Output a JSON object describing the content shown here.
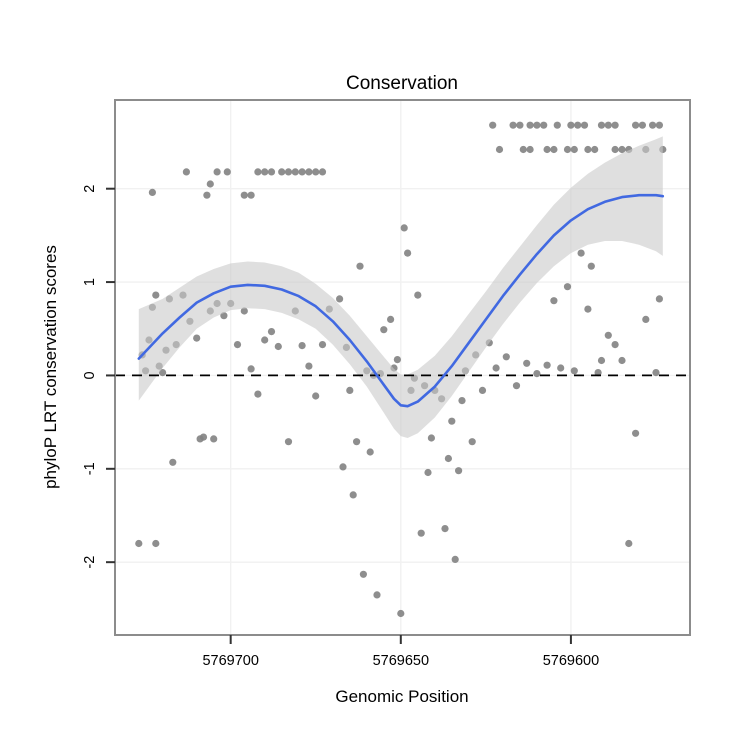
{
  "chart_data": {
    "type": "scatter",
    "title": "Conservation",
    "xlabel": "Genomic Position",
    "ylabel": "phyloP LRT conservation scores",
    "x_reversed": true,
    "xlim": [
      5769734,
      5769565
    ],
    "ylim": [
      -2.78,
      2.95
    ],
    "grid": "on",
    "legend": "none",
    "x_ticks": [
      {
        "value": 5769700,
        "label": "5769700"
      },
      {
        "value": 5769650,
        "label": "5769650"
      },
      {
        "value": 5769600,
        "label": "5769600"
      }
    ],
    "y_ticks": [
      {
        "value": -2,
        "label": "-2"
      },
      {
        "value": -1,
        "label": "-1"
      },
      {
        "value": 0,
        "label": "0"
      },
      {
        "value": 1,
        "label": "1"
      },
      {
        "value": 2,
        "label": "2"
      }
    ],
    "zero_line": {
      "y": 0,
      "style": "dashed",
      "color": "#000000"
    },
    "colors": {
      "point": "#828282",
      "smooth_line": "#4169E1",
      "ci_band": "#c9c9c9",
      "grid": "#f1f1f1",
      "panel_border": "#8c8c8c",
      "background": "#ffffff"
    },
    "points": [
      [
        5769723,
        1.96
      ],
      [
        5769713,
        2.18
      ],
      [
        5769707,
        1.93
      ],
      [
        5769706,
        2.05
      ],
      [
        5769704,
        2.18
      ],
      [
        5769701,
        2.18
      ],
      [
        5769696,
        1.93
      ],
      [
        5769694,
        1.93
      ],
      [
        5769692,
        2.18
      ],
      [
        5769690,
        2.18
      ],
      [
        5769688,
        2.18
      ],
      [
        5769685,
        2.18
      ],
      [
        5769683,
        2.18
      ],
      [
        5769681,
        2.18
      ],
      [
        5769679,
        2.18
      ],
      [
        5769677,
        2.18
      ],
      [
        5769675,
        2.18
      ],
      [
        5769673,
        2.18
      ],
      [
        5769623,
        2.68
      ],
      [
        5769617,
        2.68
      ],
      [
        5769615,
        2.68
      ],
      [
        5769612,
        2.68
      ],
      [
        5769610,
        2.68
      ],
      [
        5769608,
        2.68
      ],
      [
        5769604,
        2.68
      ],
      [
        5769600,
        2.68
      ],
      [
        5769598,
        2.68
      ],
      [
        5769596,
        2.68
      ],
      [
        5769591,
        2.68
      ],
      [
        5769589,
        2.68
      ],
      [
        5769587,
        2.68
      ],
      [
        5769581,
        2.68
      ],
      [
        5769579,
        2.68
      ],
      [
        5769576,
        2.68
      ],
      [
        5769574,
        2.68
      ],
      [
        5769621,
        2.42
      ],
      [
        5769614,
        2.42
      ],
      [
        5769612,
        2.42
      ],
      [
        5769607,
        2.42
      ],
      [
        5769605,
        2.42
      ],
      [
        5769601,
        2.42
      ],
      [
        5769599,
        2.42
      ],
      [
        5769595,
        2.42
      ],
      [
        5769593,
        2.42
      ],
      [
        5769587,
        2.42
      ],
      [
        5769585,
        2.42
      ],
      [
        5769583,
        2.42
      ],
      [
        5769578,
        2.42
      ],
      [
        5769573,
        2.42
      ],
      [
        5769726,
        0.22
      ],
      [
        5769725,
        0.05
      ],
      [
        5769724,
        0.38
      ],
      [
        5769723,
        0.73
      ],
      [
        5769722,
        0.86
      ],
      [
        5769721,
        0.1
      ],
      [
        5769720,
        0.03
      ],
      [
        5769719,
        0.27
      ],
      [
        5769718,
        0.82
      ],
      [
        5769716,
        0.33
      ],
      [
        5769714,
        0.86
      ],
      [
        5769712,
        0.58
      ],
      [
        5769710,
        0.4
      ],
      [
        5769708,
        -0.66
      ],
      [
        5769706,
        0.69
      ],
      [
        5769704,
        0.77
      ],
      [
        5769702,
        0.64
      ],
      [
        5769700,
        0.77
      ],
      [
        5769698,
        0.33
      ],
      [
        5769696,
        0.69
      ],
      [
        5769694,
        0.07
      ],
      [
        5769692,
        -0.2
      ],
      [
        5769690,
        0.38
      ],
      [
        5769688,
        0.47
      ],
      [
        5769686,
        0.31
      ],
      [
        5769683,
        -0.71
      ],
      [
        5769681,
        0.69
      ],
      [
        5769679,
        0.32
      ],
      [
        5769677,
        0.1
      ],
      [
        5769675,
        -0.22
      ],
      [
        5769673,
        0.33
      ],
      [
        5769671,
        0.71
      ],
      [
        5769727,
        -1.8
      ],
      [
        5769722,
        -1.8
      ],
      [
        5769717,
        -0.93
      ],
      [
        5769709,
        -0.68
      ],
      [
        5769705,
        -0.68
      ],
      [
        5769668,
        0.82
      ],
      [
        5769666,
        0.3
      ],
      [
        5769665,
        -0.16
      ],
      [
        5769663,
        -0.71
      ],
      [
        5769662,
        1.17
      ],
      [
        5769660,
        0.05
      ],
      [
        5769659,
        -0.82
      ],
      [
        5769658,
        0.0
      ],
      [
        5769656,
        0.02
      ],
      [
        5769655,
        0.49
      ],
      [
        5769653,
        0.6
      ],
      [
        5769652,
        0.08
      ],
      [
        5769651,
        0.17
      ],
      [
        5769649,
        1.58
      ],
      [
        5769648,
        1.31
      ],
      [
        5769647,
        -0.16
      ],
      [
        5769646,
        -0.03
      ],
      [
        5769645,
        0.86
      ],
      [
        5769643,
        -0.11
      ],
      [
        5769641,
        -0.67
      ],
      [
        5769640,
        -0.16
      ],
      [
        5769638,
        -0.25
      ],
      [
        5769636,
        -0.89
      ],
      [
        5769635,
        -0.49
      ],
      [
        5769633,
        -1.02
      ],
      [
        5769632,
        -0.27
      ],
      [
        5769631,
        0.05
      ],
      [
        5769629,
        -0.71
      ],
      [
        5769667,
        -0.98
      ],
      [
        5769664,
        -1.28
      ],
      [
        5769661,
        -2.13
      ],
      [
        5769657,
        -2.35
      ],
      [
        5769650,
        -2.55
      ],
      [
        5769644,
        -1.69
      ],
      [
        5769642,
        -1.04
      ],
      [
        5769637,
        -1.64
      ],
      [
        5769634,
        -1.97
      ],
      [
        5769628,
        0.22
      ],
      [
        5769626,
        -0.16
      ],
      [
        5769624,
        0.35
      ],
      [
        5769622,
        0.08
      ],
      [
        5769619,
        0.2
      ],
      [
        5769616,
        -0.11
      ],
      [
        5769613,
        0.13
      ],
      [
        5769610,
        0.02
      ],
      [
        5769607,
        0.11
      ],
      [
        5769605,
        0.8
      ],
      [
        5769603,
        0.08
      ],
      [
        5769601,
        0.95
      ],
      [
        5769599,
        0.05
      ],
      [
        5769597,
        1.31
      ],
      [
        5769595,
        0.71
      ],
      [
        5769594,
        1.17
      ],
      [
        5769592,
        0.03
      ],
      [
        5769591,
        0.16
      ],
      [
        5769589,
        0.43
      ],
      [
        5769587,
        0.33
      ],
      [
        5769585,
        0.16
      ],
      [
        5769583,
        -1.8
      ],
      [
        5769581,
        -0.62
      ],
      [
        5769578,
        0.6
      ],
      [
        5769575,
        0.03
      ],
      [
        5769574,
        0.82
      ]
    ],
    "smooth": {
      "x": [
        5769727,
        5769720,
        5769715,
        5769710,
        5769705,
        5769700,
        5769695,
        5769690,
        5769685,
        5769680,
        5769675,
        5769670,
        5769665,
        5769660,
        5769655,
        5769652,
        5769650,
        5769648,
        5769645,
        5769640,
        5769635,
        5769630,
        5769625,
        5769620,
        5769615,
        5769610,
        5769605,
        5769600,
        5769595,
        5769590,
        5769585,
        5769580,
        5769575,
        5769573
      ],
      "mean": [
        0.18,
        0.45,
        0.62,
        0.78,
        0.88,
        0.95,
        0.97,
        0.96,
        0.92,
        0.85,
        0.74,
        0.58,
        0.38,
        0.15,
        -0.1,
        -0.25,
        -0.32,
        -0.33,
        -0.28,
        -0.12,
        0.1,
        0.35,
        0.6,
        0.85,
        1.08,
        1.3,
        1.5,
        1.66,
        1.78,
        1.86,
        1.91,
        1.93,
        1.93,
        1.92
      ],
      "lower": [
        -0.27,
        0.08,
        0.3,
        0.5,
        0.62,
        0.7,
        0.72,
        0.71,
        0.67,
        0.6,
        0.5,
        0.33,
        0.12,
        -0.12,
        -0.4,
        -0.57,
        -0.65,
        -0.67,
        -0.62,
        -0.45,
        -0.22,
        0.04,
        0.3,
        0.55,
        0.78,
        0.99,
        1.17,
        1.31,
        1.4,
        1.44,
        1.44,
        1.4,
        1.33,
        1.28
      ],
      "upper": [
        0.71,
        0.82,
        0.94,
        1.06,
        1.14,
        1.2,
        1.22,
        1.21,
        1.17,
        1.1,
        0.98,
        0.83,
        0.64,
        0.42,
        0.2,
        0.07,
        0.01,
        0.01,
        0.06,
        0.21,
        0.42,
        0.66,
        0.9,
        1.15,
        1.38,
        1.61,
        1.83,
        2.01,
        2.16,
        2.28,
        2.38,
        2.46,
        2.53,
        2.56
      ]
    }
  }
}
